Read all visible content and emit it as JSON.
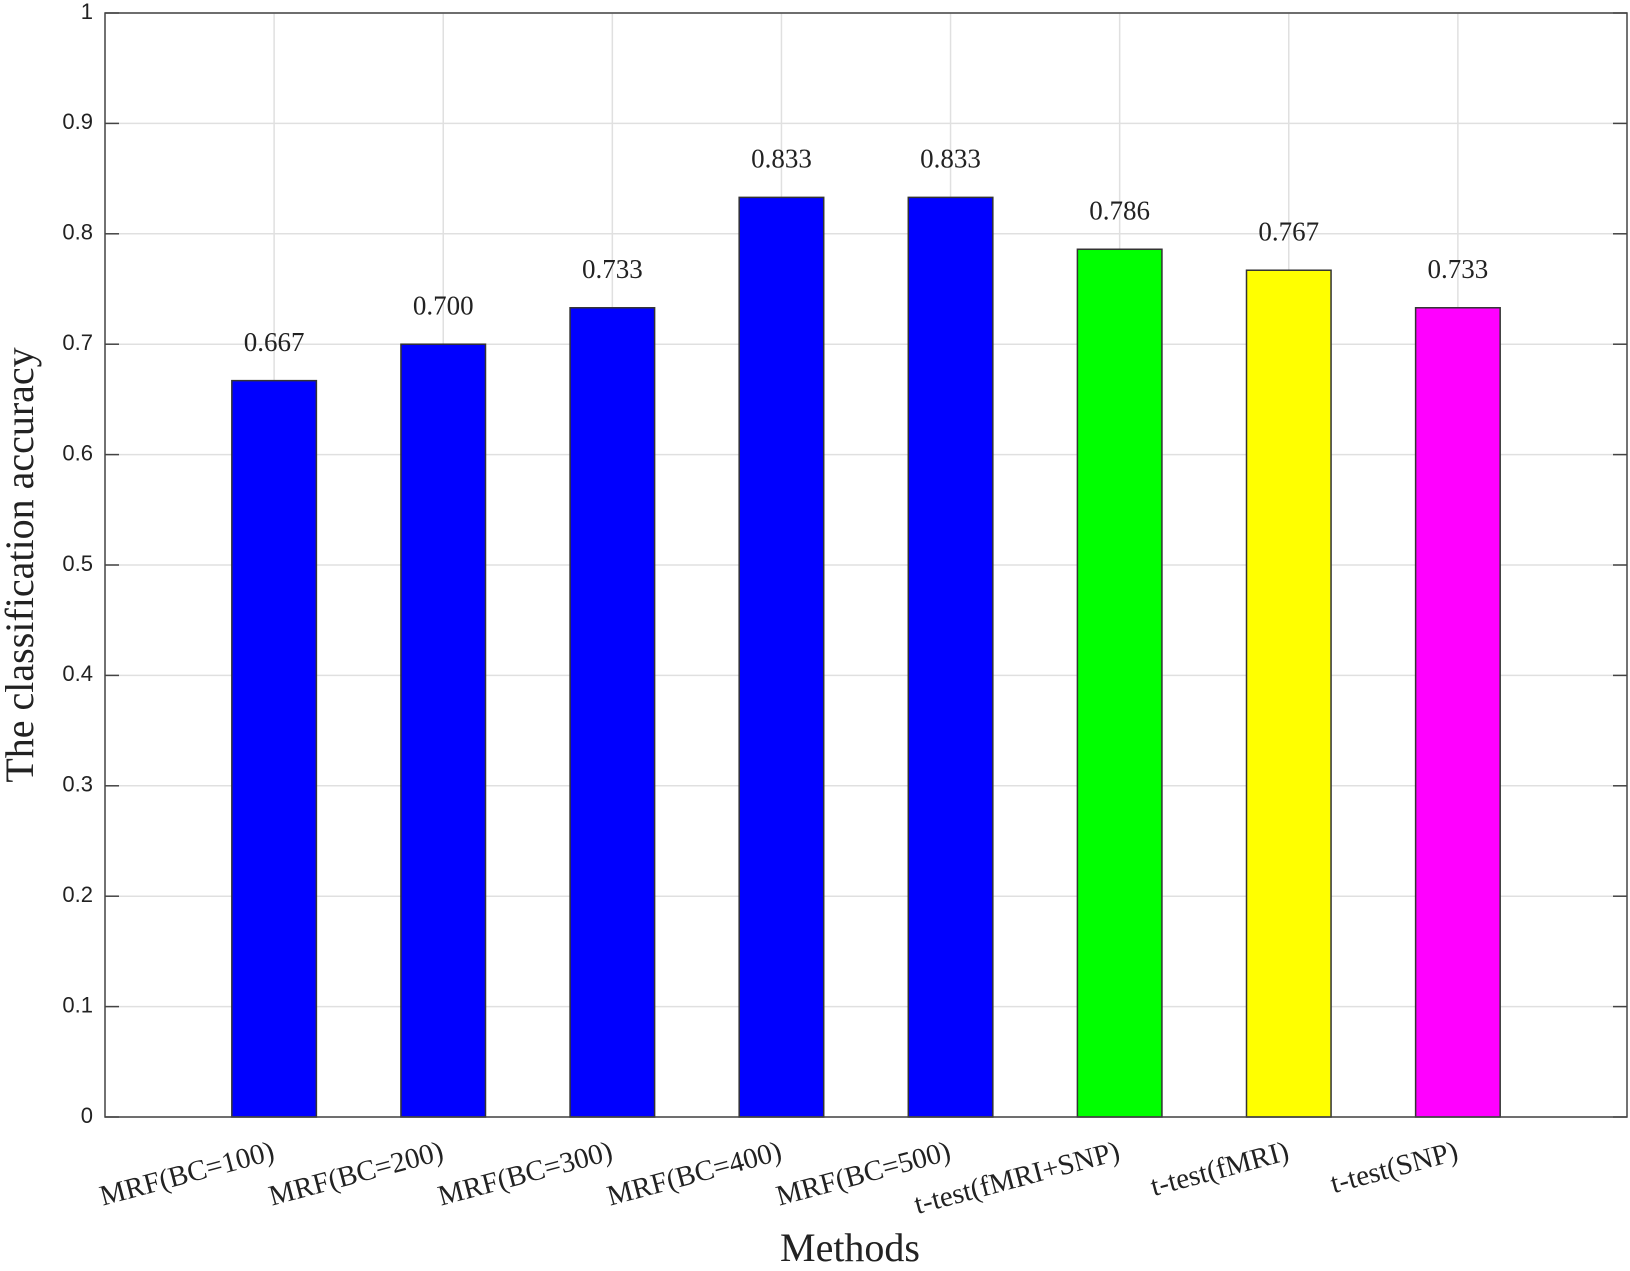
{
  "chart_data": {
    "type": "bar",
    "xlabel": "Methods",
    "ylabel": "The classification accuracy",
    "categories": [
      "MRF(BC=100)",
      "MRF(BC=200)",
      "MRF(BC=300)",
      "MRF(BC=400)",
      "MRF(BC=500)",
      "t-test(fMRI+SNP)",
      "t-test(fMRI)",
      "t-test(SNP)"
    ],
    "values": [
      0.667,
      0.7,
      0.733,
      0.833,
      0.833,
      0.786,
      0.767,
      0.733
    ],
    "value_labels": [
      "0.667",
      "0.700",
      "0.733",
      "0.833",
      "0.833",
      "0.786",
      "0.767",
      "0.733"
    ],
    "colors": [
      "#0000ff",
      "#0000ff",
      "#0000ff",
      "#0000ff",
      "#0000ff",
      "#00ff00",
      "#ffff00",
      "#ff00ff"
    ],
    "ylim": [
      0,
      1
    ],
    "yticks": [
      0,
      0.1,
      0.2,
      0.3,
      0.4,
      0.5,
      0.6,
      0.7,
      0.8,
      0.9,
      1
    ],
    "grid": true
  }
}
